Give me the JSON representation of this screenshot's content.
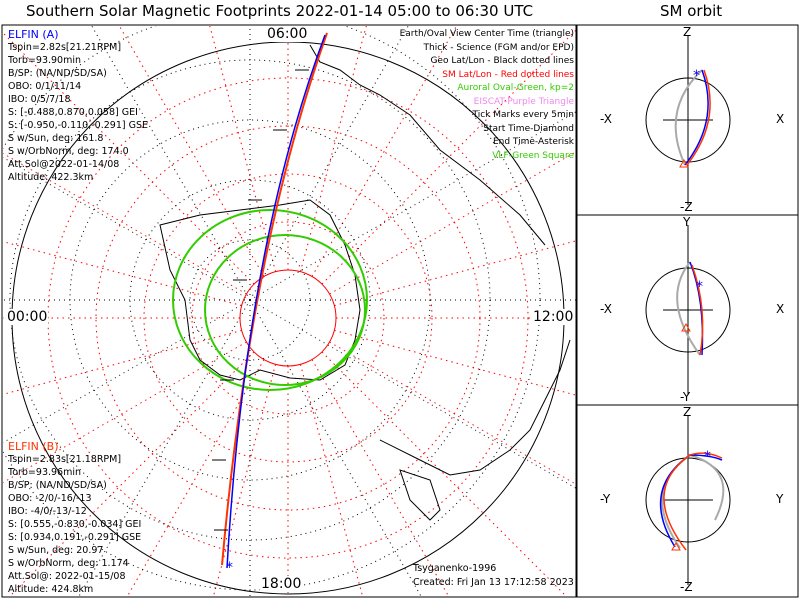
{
  "title": "Southern Solar Magnetic Footprints 2022-01-14 05:00 to 06:30 UTC",
  "orbit_title": "SM orbit",
  "hour_labels": {
    "top": "06:00",
    "left": "00:00",
    "right": "12:00",
    "bottom": "18:00"
  },
  "elfin_a": {
    "name": "ELFIN (A)",
    "color": "#0000ff",
    "lines": [
      "Tspin=2.82s[21.21RPM]",
      "Torb=93.90min",
      "B/SP: (NA/ND/SD/SA)",
      "OBO: 0/1/11/14",
      "IBO: 0/5/7/18",
      "S: [-0.488,0.870,0.058] GEI",
      "S: [-0.950,-0.110,-0.291] GSE",
      "S w/Sun, deg: 161.8",
      "S w/OrbNorm, deg: 174.0",
      "Att.Sol@2022-01-14/08",
      "Altitude: 422.3km"
    ]
  },
  "elfin_b": {
    "name": "ELFIN (B)",
    "color": "#ff3300",
    "lines": [
      "Tspin=2.83s[21.18RPM]",
      "Torb=93.96min",
      "B/SP: (NA/ND/SD/SA)",
      "OBO: -2/0/-16/-13",
      "IBO: -4/0/-13/-12",
      "S: [0.555,-0.830,-0.034] GEI",
      "S: [0.934,0.191,-0.291] GSE",
      "S w/Sun, deg: 20.97",
      "S w/OrbNorm, deg: 1.174",
      "Att.Sol@: 2022-01-15/08",
      "Altitude: 424.8km"
    ]
  },
  "legend": [
    {
      "text": "Earth/Oval View Center Time (triangle)",
      "color": "#000000"
    },
    {
      "text": "Thick - Science (FGM and/or EPD)",
      "color": "#000000"
    },
    {
      "text": "Geo Lat/Lon - Black dotted lines",
      "color": "#000000"
    },
    {
      "text": "SM Lat/Lon - Red dotted lines",
      "color": "#ff0000"
    },
    {
      "text": "Auroral Oval-Green, kp=2",
      "color": "#33cc00"
    },
    {
      "text": "EISCAT-Purple Triangle",
      "color": "#ee88ee"
    },
    {
      "text": "Tick Marks every 5min",
      "color": "#000000"
    },
    {
      "text": "Start Time-Diamond",
      "color": "#000000"
    },
    {
      "text": "End Time-Asterisk",
      "color": "#000000"
    },
    {
      "text": "VLF-Green Square",
      "color": "#33cc00"
    }
  ],
  "footer": {
    "model": "Tsyganenko-1996",
    "created": "Created: Fri Jan 13 17:12:58 2023"
  },
  "orbit_panels": [
    {
      "top": "Z",
      "bottom": "-Z",
      "left": "-X",
      "right": "X"
    },
    {
      "top": "Y",
      "bottom": "-Y",
      "left": "-X",
      "right": "X"
    },
    {
      "top": "Z",
      "bottom": "-Z",
      "left": "-Y",
      "right": "Y"
    }
  ],
  "chart_data": {
    "type": "map",
    "projection": "south polar",
    "track_a_color": "#0000ff",
    "track_b_color": "#ff3300",
    "sm_grid_color": "#ff0000",
    "oval_color": "#33cc00"
  }
}
